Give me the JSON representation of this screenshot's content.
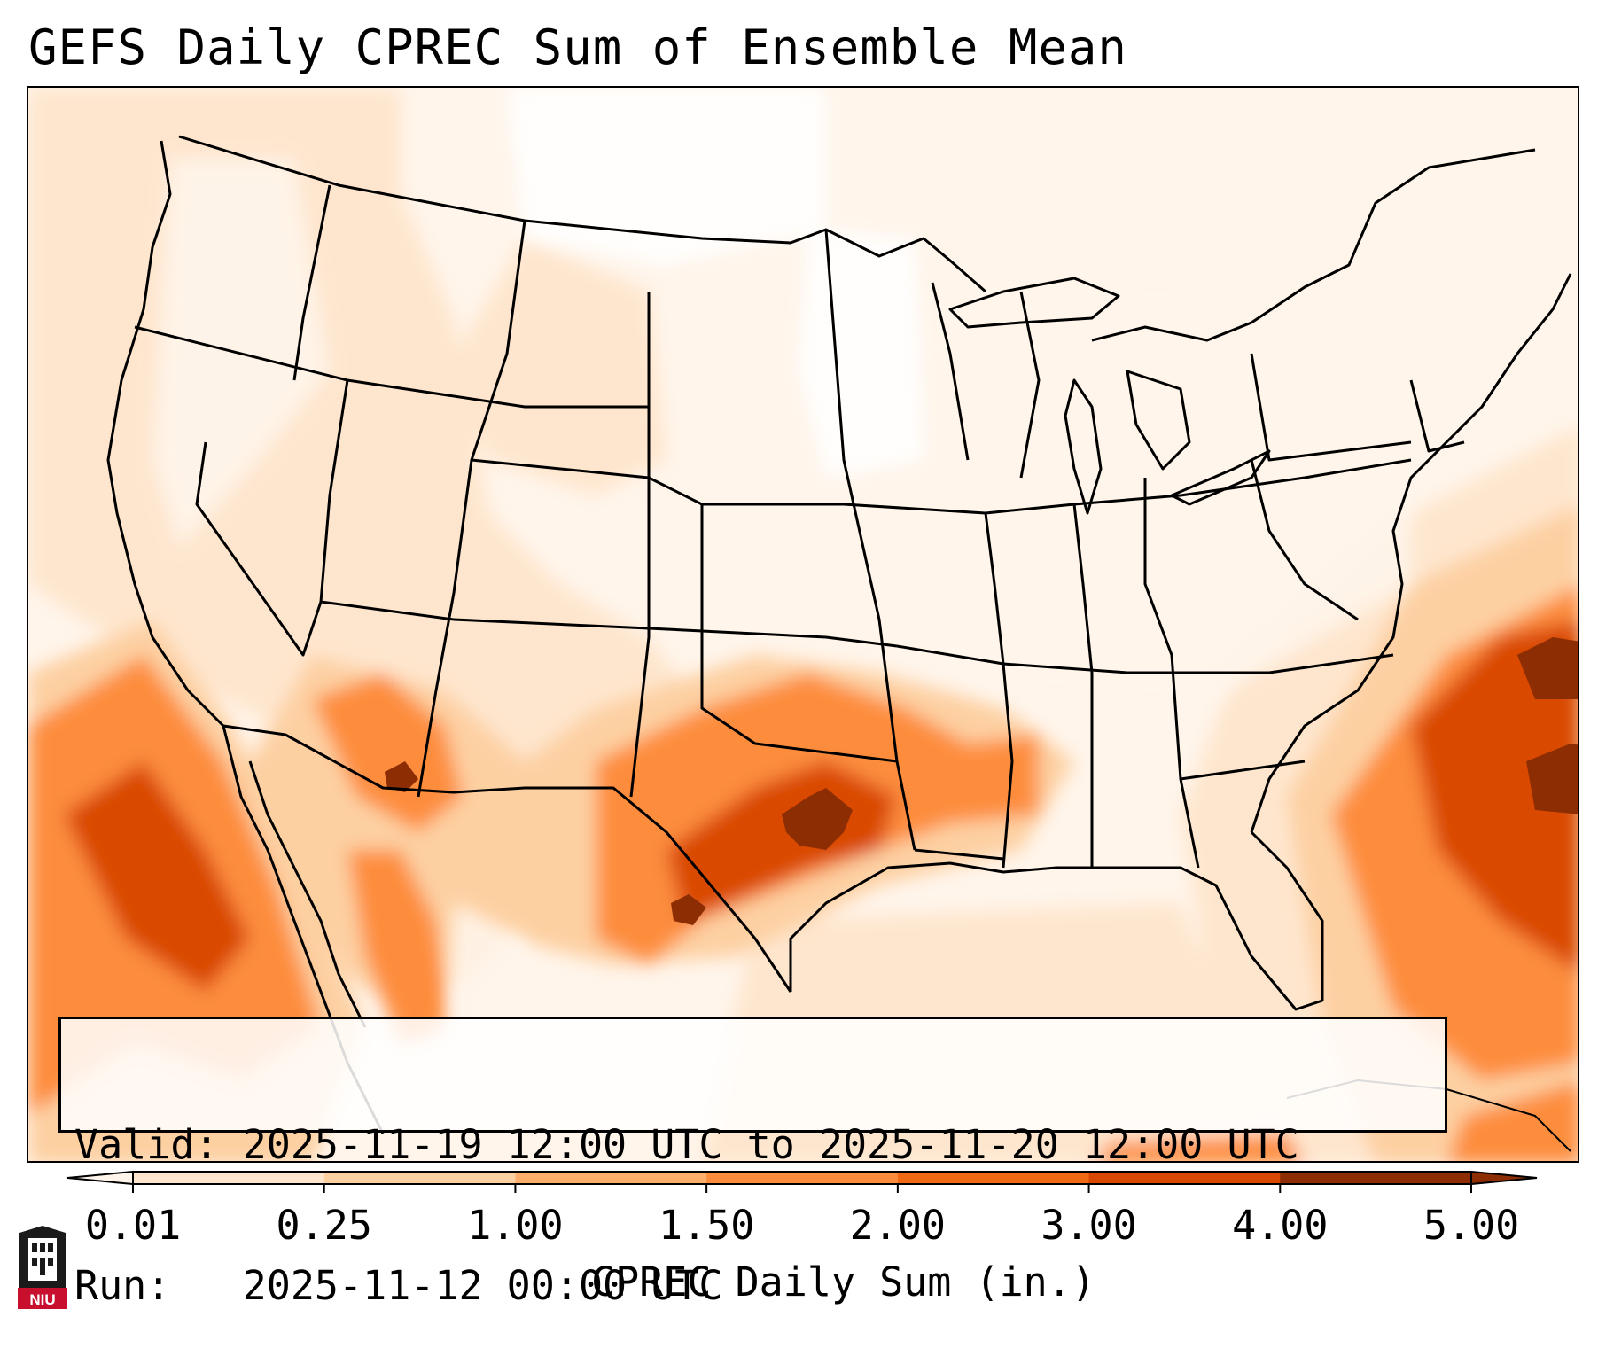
{
  "title": "GEFS Daily CPREC Sum of Ensemble Mean",
  "info": {
    "valid_label": "Valid:",
    "valid_value": "2025-11-19 12:00 UTC to 2025-11-20 12:00 UTC",
    "run_label": "Run:",
    "run_value": "2025-11-12 00:00 UTC"
  },
  "colorbar": {
    "label": "CPREC Daily Sum (in.)",
    "ticks": [
      "0.01",
      "0.25",
      "1.00",
      "1.50",
      "2.00",
      "3.00",
      "4.00",
      "5.00"
    ],
    "colors": [
      "#fff5eb",
      "#fee6ce",
      "#fdd0a2",
      "#fdae6b",
      "#fd8d3c",
      "#f16913",
      "#d94801",
      "#8c2d04"
    ],
    "extend": "both"
  },
  "map": {
    "region": "Contiguous United States",
    "outlines": "state and country borders",
    "colors": {
      "none": "#ffffff",
      "trace": "#fff5eb",
      "light": "#fee6ce",
      "moderate": "#fdd0a2",
      "heavy": "#fd8d3c",
      "very_heavy": "#d94801",
      "extreme": "#8c2d04"
    }
  },
  "logo": {
    "text": "NIU",
    "color": "#c8102e"
  }
}
